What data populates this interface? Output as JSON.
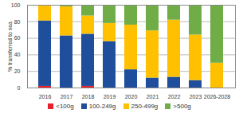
{
  "chart_data": {
    "type": "bar",
    "stacked": true,
    "grid": true,
    "legend": "bottom",
    "y_label": "% transferred to sea",
    "categories": [
      "2016",
      "2017",
      "2018",
      "2019",
      "2020",
      "2021",
      "2022",
      "2023",
      "2026-2028"
    ],
    "series": [
      {
        "name": "<100g",
        "color": "#e8202a",
        "values": [
          2,
          0,
          2,
          0,
          0,
          0,
          0,
          0,
          0
        ]
      },
      {
        "name": "100-249g",
        "color": "#1f4e9c",
        "values": [
          79,
          63,
          63,
          56,
          22,
          12,
          13,
          9,
          0
        ]
      },
      {
        "name": "250-499g",
        "color": "#ffc000",
        "values": [
          18,
          35,
          22,
          22,
          54,
          57,
          69,
          55,
          30
        ]
      },
      {
        "name": ">500g",
        "color": "#70ad47",
        "values": [
          1,
          2,
          13,
          22,
          24,
          31,
          18,
          36,
          70
        ]
      }
    ],
    "ylim": [
      0,
      100
    ],
    "yticks": [
      0,
      20,
      40,
      60,
      80,
      100
    ]
  }
}
